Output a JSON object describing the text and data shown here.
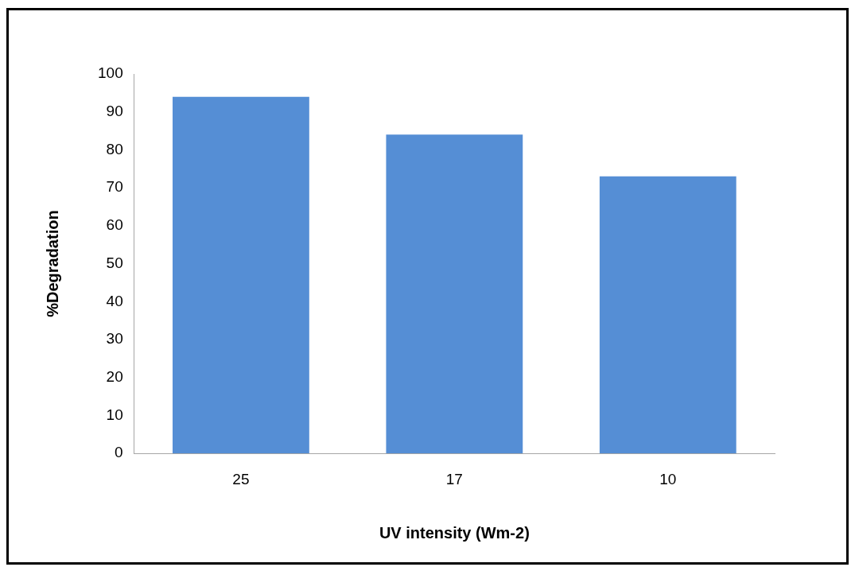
{
  "chart_data": {
    "type": "bar",
    "xlabel": "UV intensity (Wm-2)",
    "ylabel": "%Degradation",
    "categories": [
      "25",
      "17",
      "10"
    ],
    "values": [
      94,
      84,
      73
    ],
    "color": "#558ed5",
    "ylim": [
      0,
      100
    ],
    "yticks": [
      0,
      10,
      20,
      30,
      40,
      50,
      60,
      70,
      80,
      90,
      100
    ],
    "grid": false,
    "legend": false
  }
}
